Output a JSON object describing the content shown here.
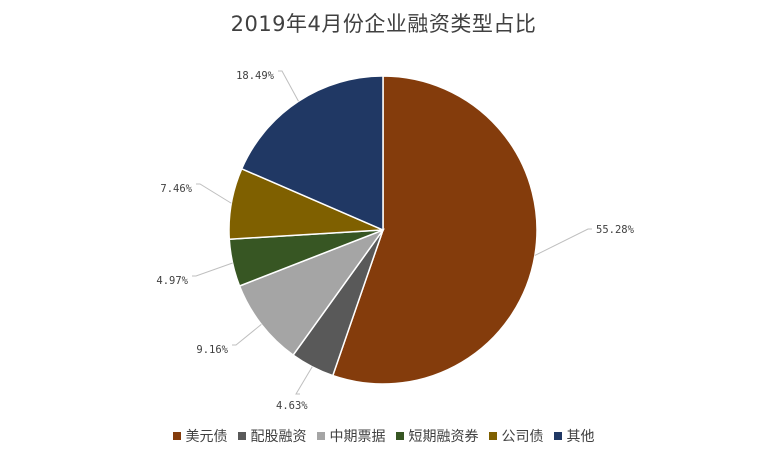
{
  "chart_data": {
    "type": "pie",
    "title": "2019年4月份企业融资类型占比",
    "slices": [
      {
        "name": "美元债",
        "value": 55.28,
        "label": "55.28%",
        "color": "#843C0C"
      },
      {
        "name": "配股融资",
        "value": 4.63,
        "label": "4.63%",
        "color": "#595959"
      },
      {
        "name": "中期票据",
        "value": 9.16,
        "label": "9.16%",
        "color": "#A5A5A5"
      },
      {
        "name": "短期融资券",
        "value": 4.97,
        "label": "4.97%",
        "color": "#375623"
      },
      {
        "name": "公司债",
        "value": 7.46,
        "label": "7.46%",
        "color": "#7F6000"
      },
      {
        "name": "其他",
        "value": 18.49,
        "label": "18.49%",
        "color": "#203864"
      }
    ],
    "legend_position": "bottom",
    "start_angle_deg": 0,
    "direction": "clockwise"
  }
}
